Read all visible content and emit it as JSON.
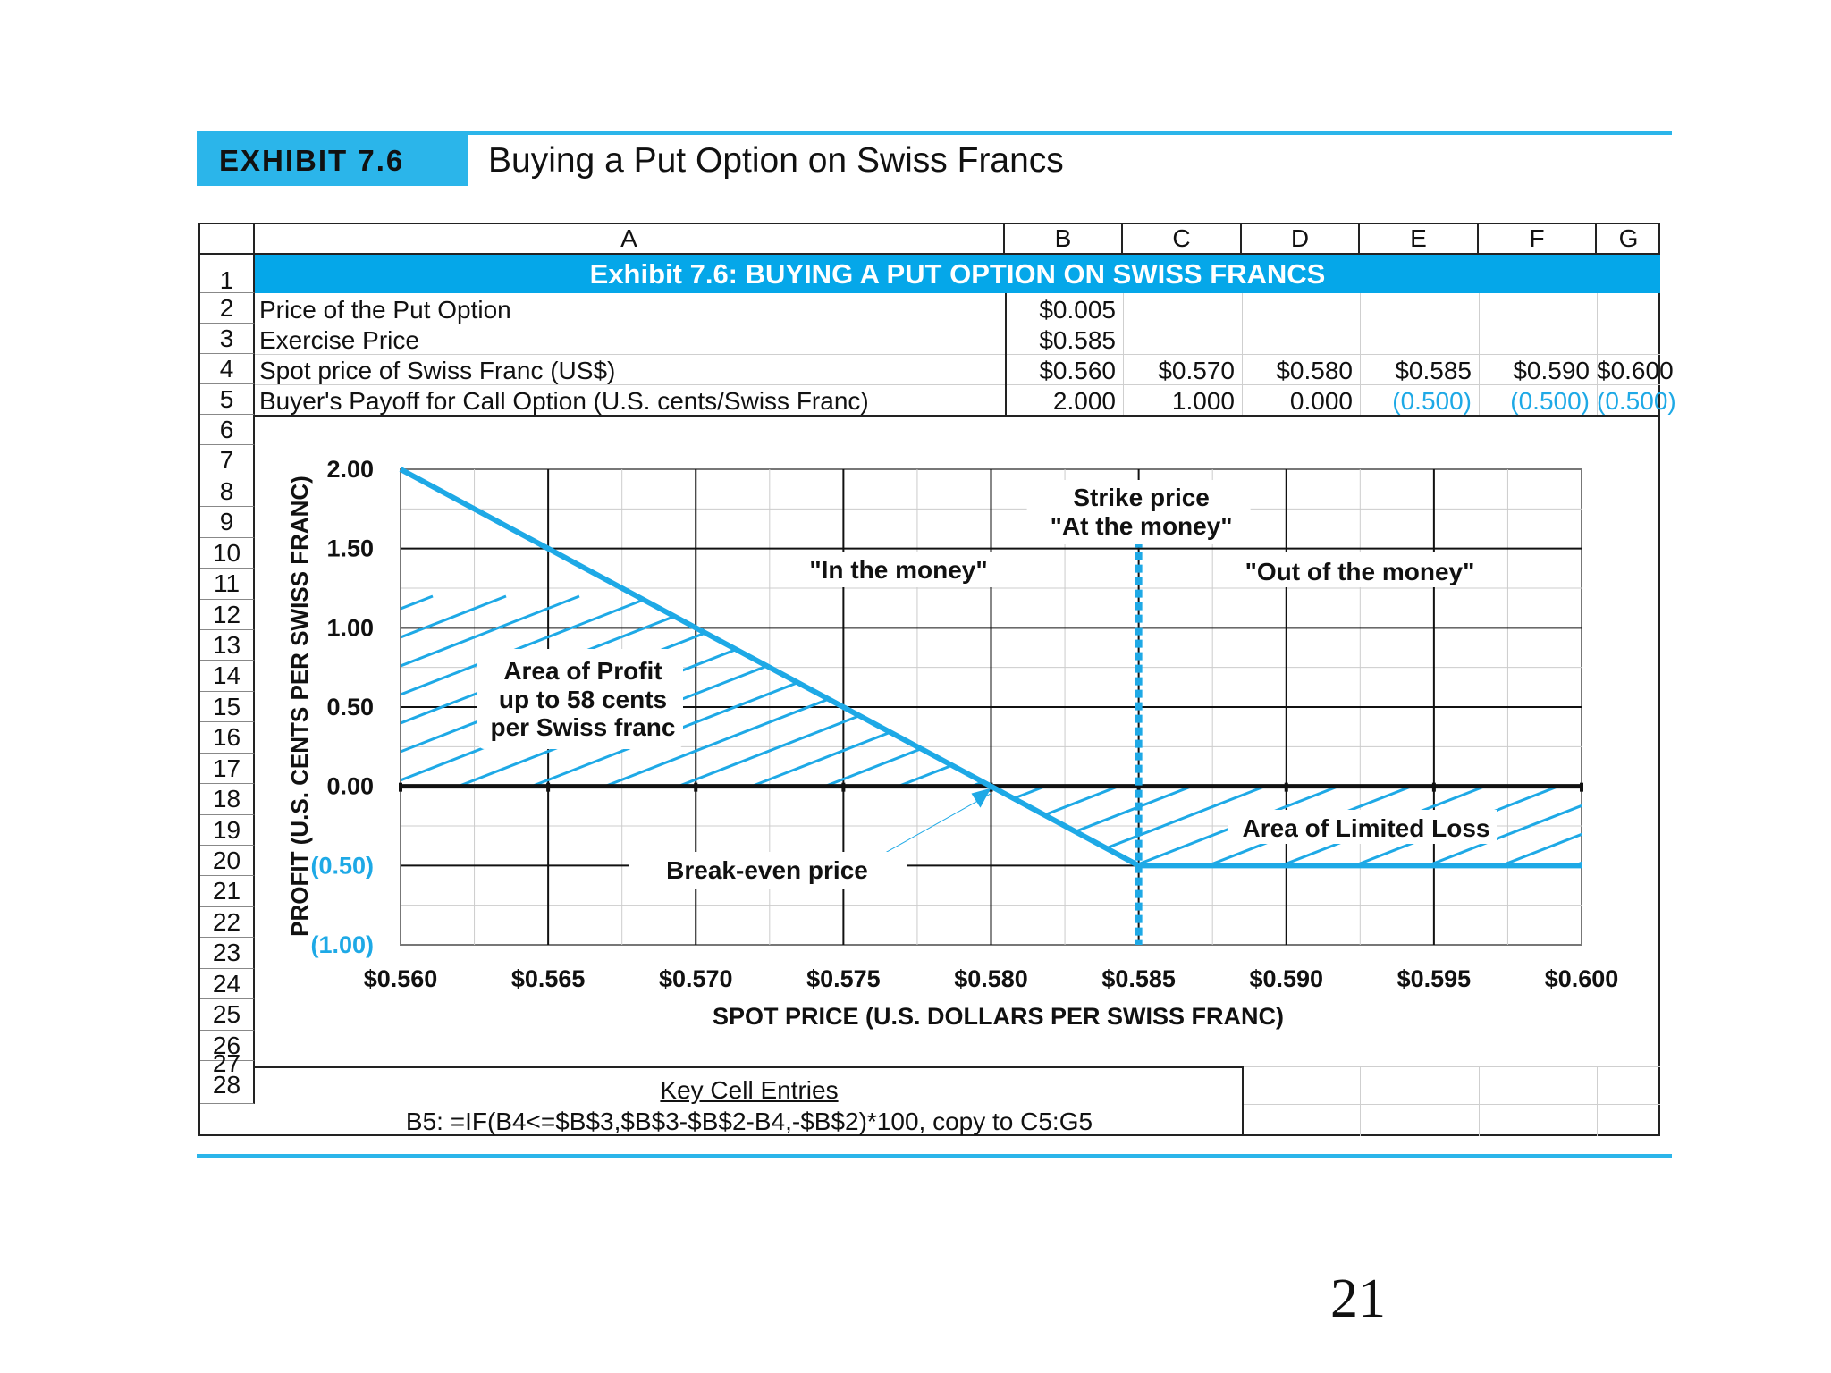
{
  "exhibit": {
    "label": "EXHIBIT 7.6",
    "title": "Buying a Put Option on Swiss Francs"
  },
  "sheet": {
    "column_headers": [
      "A",
      "B",
      "C",
      "D",
      "E",
      "F",
      "G"
    ],
    "row_numbers": [
      "1",
      "2",
      "3",
      "4",
      "5",
      "6",
      "7",
      "8",
      "9",
      "10",
      "11",
      "12",
      "13",
      "14",
      "15",
      "16",
      "17",
      "18",
      "19",
      "20",
      "21",
      "22",
      "23",
      "24",
      "25",
      "26",
      "27",
      "28"
    ],
    "banner": "Exhibit 7.6: BUYING A PUT OPTION ON SWISS FRANCS",
    "rows": [
      {
        "label": "Price of the Put Option",
        "values": [
          "$0.005"
        ]
      },
      {
        "label": "Exercise Price",
        "values": [
          "$0.585"
        ]
      },
      {
        "label": "Spot price of Swiss Franc (US$)",
        "values": [
          "$0.560",
          "$0.570",
          "$0.580",
          "$0.585",
          "$0.590",
          "$0.600"
        ]
      },
      {
        "label": "Buyer's Payoff for Call Option (U.S. cents/Swiss Franc)",
        "values": [
          "2.000",
          "1.000",
          "0.000",
          "(0.500)",
          "(0.500)",
          "(0.500)"
        ]
      }
    ],
    "key_cell_title": "Key Cell Entries",
    "key_cell_formula": "B5:  =IF(B4<=$B$3,$B$3-$B$2-B4,-$B$2)*100, copy to C5:G5"
  },
  "chart_data": {
    "type": "line",
    "xlabel": "SPOT PRICE (U.S. DOLLARS PER SWISS FRANC)",
    "ylabel": "PROFIT (U.S. CENTS PER SWISS FRANC)",
    "xlim": [
      0.56,
      0.6
    ],
    "ylim": [
      -1.0,
      2.0
    ],
    "x_tick_labels": [
      "$0.560",
      "$0.565",
      "$0.570",
      "$0.575",
      "$0.580",
      "$0.585",
      "$0.590",
      "$0.595",
      "$0.600"
    ],
    "y_tick_labels": [
      "2.00",
      "1.50",
      "1.00",
      "0.50",
      "0.00",
      "(0.50)",
      "(1.00)"
    ],
    "y_tick_values": [
      2.0,
      1.5,
      1.0,
      0.5,
      0.0,
      -0.5,
      -1.0
    ],
    "grid": true,
    "series": [
      {
        "x": [
          0.56,
          0.57,
          0.58,
          0.585,
          0.59,
          0.6
        ],
        "values": [
          2.0,
          1.0,
          0.0,
          -0.5,
          -0.5,
          -0.5
        ]
      }
    ],
    "strike_price": 0.585,
    "break_even": 0.58,
    "annotations": {
      "strike": [
        "Strike price",
        "\"At the money\""
      ],
      "in_money": "\"In the money\"",
      "out_money": "\"Out of the money\"",
      "profit_area": [
        "Area of Profit",
        "up to 58 cents",
        "per Swiss franc"
      ],
      "loss_area": "Area of Limited Loss",
      "break_even": "Break-even price"
    },
    "colors": {
      "line": "#1ea9e6",
      "axis": "#111111",
      "grid_major": "#111111",
      "grid_minor": "#cccccc"
    }
  },
  "page_number": "21"
}
